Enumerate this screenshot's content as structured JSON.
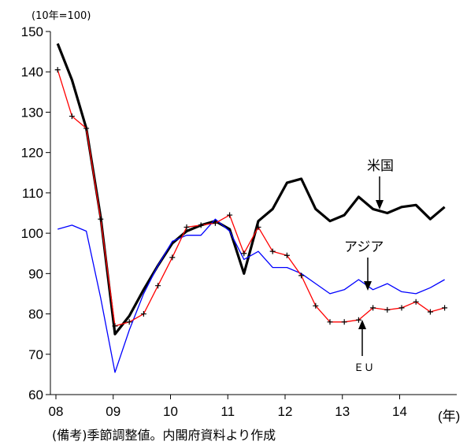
{
  "chart_data": {
    "type": "line",
    "unit_note": "(10年=100)",
    "x_unit": "(年)",
    "footnote": "(備考)季節調整値。内閣府資料より作成",
    "ylim": [
      60,
      150
    ],
    "yticks": [
      60,
      70,
      80,
      90,
      100,
      110,
      120,
      130,
      140,
      150
    ],
    "xticks": [
      "08",
      "09",
      "10",
      "11",
      "12",
      "13",
      "14"
    ],
    "x_quarter_start": [
      2008,
      1
    ],
    "series": [
      {
        "name": "米国",
        "color": "#000000",
        "values": [
          147,
          138,
          126,
          104,
          75,
          79.5,
          86,
          92,
          97.5,
          100.5,
          102,
          103,
          101,
          90,
          103,
          106,
          112.5,
          113.5,
          106,
          103,
          104.5,
          109,
          106,
          105,
          106.5,
          107,
          103.5,
          106.5
        ]
      },
      {
        "name": "アジア",
        "color": "#0000ff",
        "values": [
          101,
          102,
          100.5,
          84,
          65.5,
          76,
          85,
          92,
          98,
          99.5,
          99.5,
          103.5,
          100.5,
          93.5,
          95.5,
          91.5,
          91.5,
          90,
          87.5,
          85,
          86,
          88.5,
          86,
          87.5,
          85.5,
          85,
          86.5,
          88.5
        ]
      },
      {
        "name": "ＥＵ",
        "color": "#ff0000",
        "values": [
          140.5,
          129,
          126,
          103.5,
          77,
          78,
          80,
          87,
          94,
          101.5,
          102,
          102.5,
          104.5,
          95,
          101.5,
          95.5,
          94.5,
          89.5,
          82,
          78,
          78,
          78.5,
          81.5,
          81,
          81.5,
          83,
          80.5,
          81.5
        ]
      }
    ],
    "annotations": [
      {
        "series": "米国",
        "label": "米国"
      },
      {
        "series": "アジア",
        "label": "アジア"
      },
      {
        "series": "ＥＵ",
        "label": "ＥＵ"
      }
    ]
  }
}
